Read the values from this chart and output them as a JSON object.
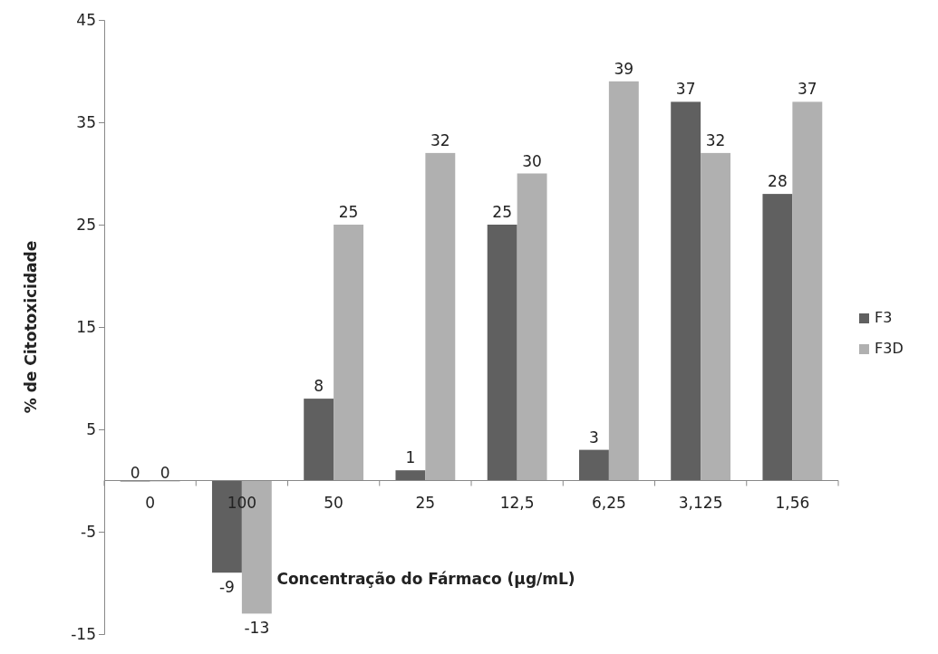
{
  "chart_data": {
    "type": "bar",
    "xlabel": "Concentração do Fármaco (µg/mL)",
    "ylabel": "% de Citotoxicidade",
    "categories": [
      "0",
      "100",
      "50",
      "25",
      "12,5",
      "6,25",
      "3,125",
      "1,56"
    ],
    "series": [
      {
        "name": "F3",
        "color": "#606060",
        "values": [
          0,
          -9,
          8,
          1,
          25,
          3,
          37,
          28
        ]
      },
      {
        "name": "F3D",
        "color": "#b0b0b0",
        "values": [
          0,
          -13,
          25,
          32,
          30,
          39,
          32,
          37
        ]
      }
    ],
    "ylim": [
      -15,
      45
    ],
    "yticks": [
      -15,
      -5,
      5,
      15,
      25,
      35,
      45
    ],
    "data_labels": true,
    "legend": "right",
    "grid": false
  }
}
